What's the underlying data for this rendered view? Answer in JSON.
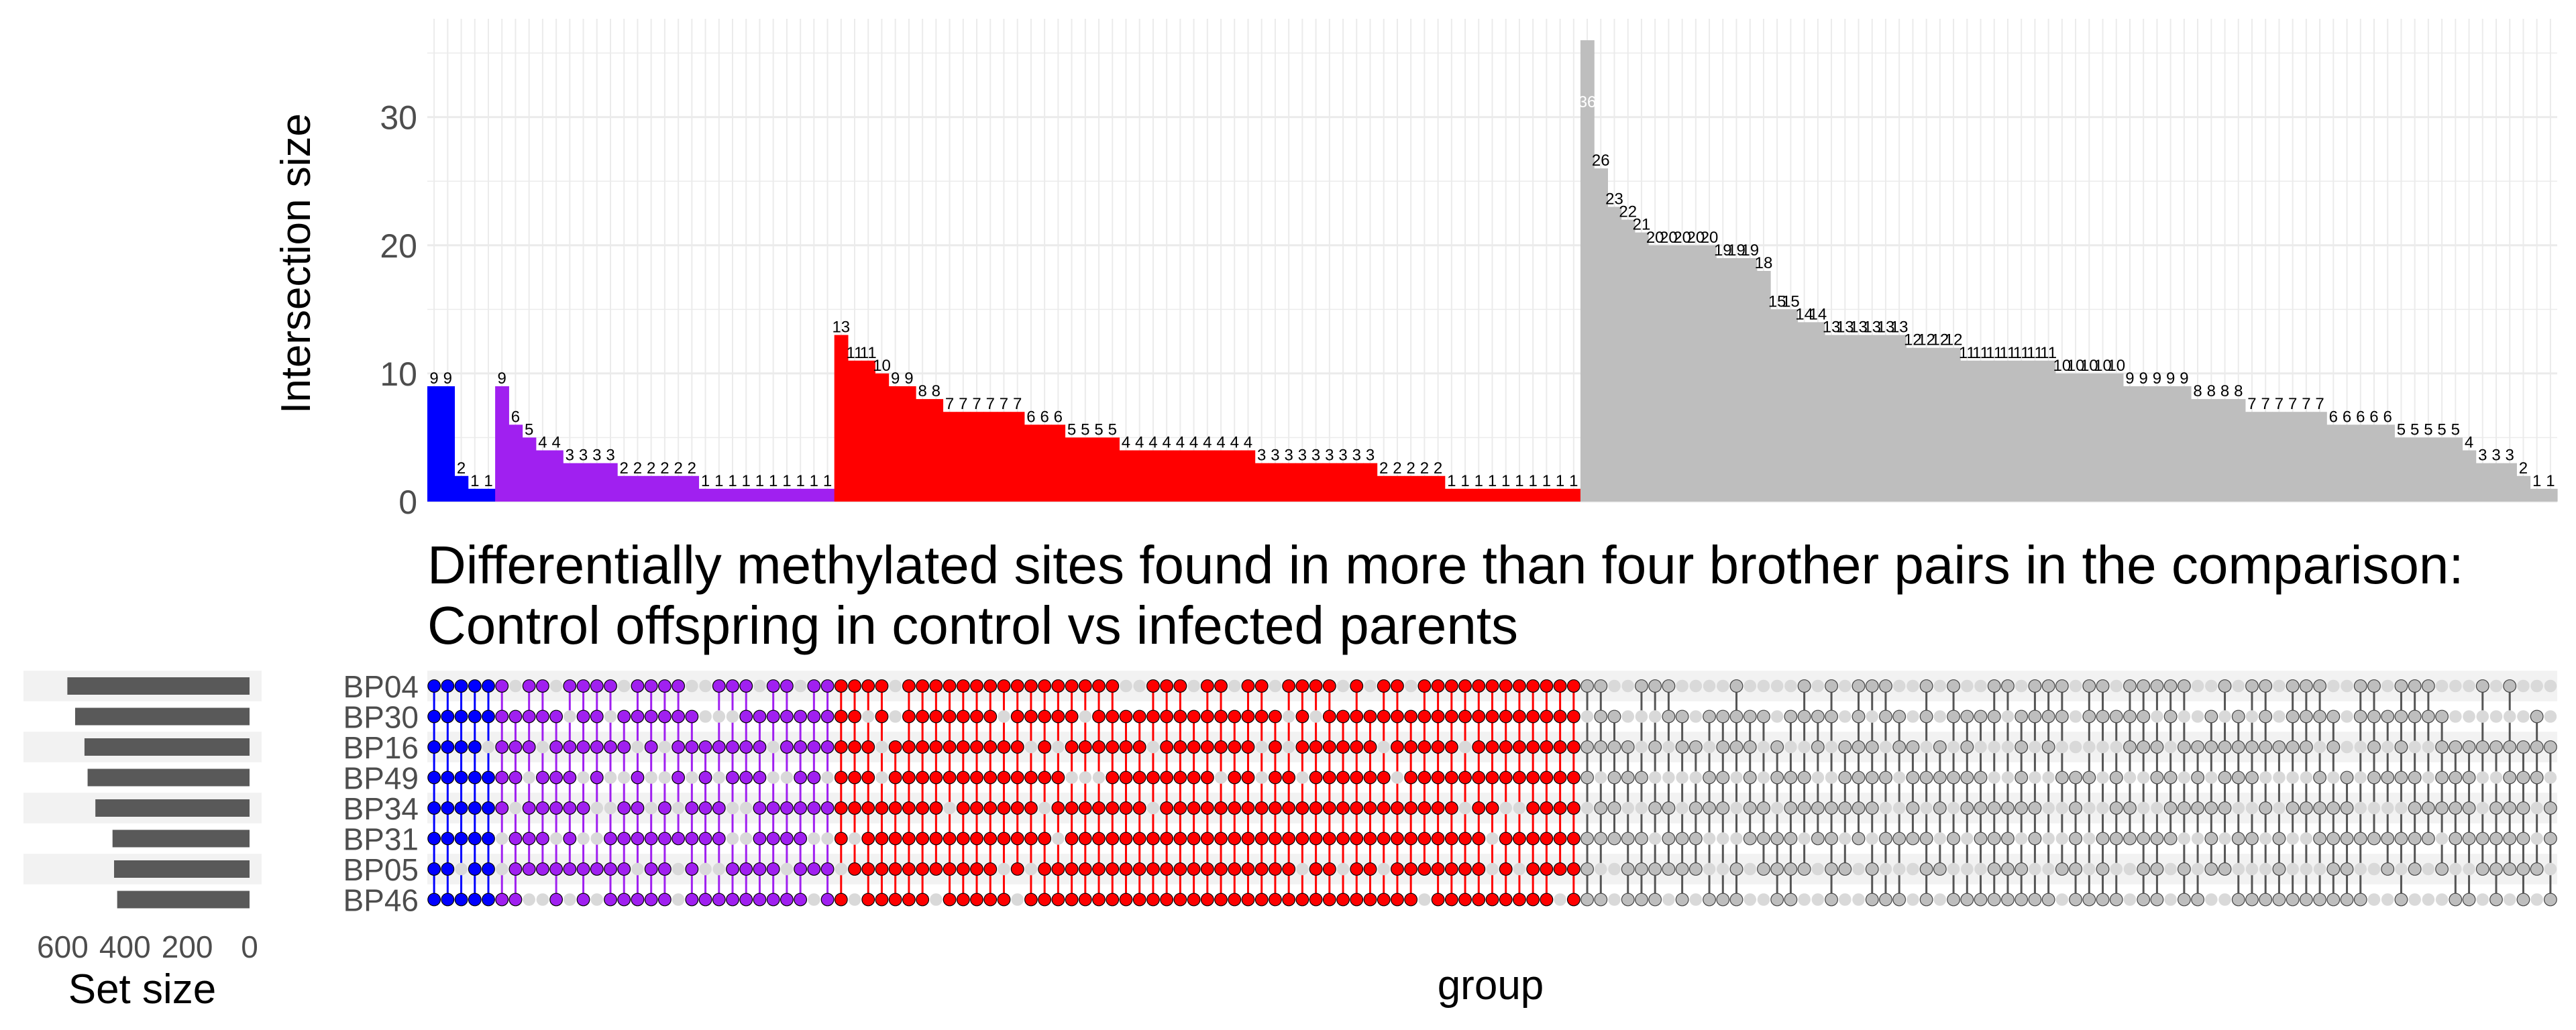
{
  "chart_data": {
    "type": "upset",
    "title_lines": [
      "Differentially methylated sites found in more than four brother pairs in the comparison:",
      "Control offspring in control vs infected parents"
    ],
    "ylabel": "Intersection size",
    "xlabel": "group",
    "set_size_label": "Set size",
    "y_ticks": [
      0,
      10,
      20,
      30
    ],
    "ylim": [
      0,
      36
    ],
    "set_size_ticks": [
      {
        "value": 600,
        "label": "600"
      },
      {
        "value": 400,
        "label": "400"
      },
      {
        "value": 200,
        "label": "200"
      },
      {
        "value": 0,
        "label": "0"
      }
    ],
    "set_size_max": 700,
    "sets": [
      {
        "name": "BP04",
        "size": 585
      },
      {
        "name": "BP30",
        "size": 560
      },
      {
        "name": "BP16",
        "size": 530
      },
      {
        "name": "BP49",
        "size": 520
      },
      {
        "name": "BP34",
        "size": 495
      },
      {
        "name": "BP31",
        "size": 440
      },
      {
        "name": "BP05",
        "size": 435
      },
      {
        "name": "BP46",
        "size": 425
      }
    ],
    "groups": [
      {
        "color": "#0000ff",
        "values": [
          9,
          9,
          2,
          1,
          1
        ]
      },
      {
        "color": "#a020f0",
        "values": [
          9,
          6,
          5,
          4,
          4,
          3,
          3,
          3,
          3,
          2,
          2,
          2,
          2,
          2,
          2,
          1,
          1,
          1,
          1,
          1,
          1,
          1,
          1,
          1,
          1
        ]
      },
      {
        "color": "#ff0000",
        "values": [
          13,
          11,
          11,
          10,
          9,
          9,
          8,
          8,
          7,
          7,
          7,
          7,
          7,
          7,
          6,
          6,
          6,
          5,
          5,
          5,
          5,
          4,
          4,
          4,
          4,
          4,
          4,
          4,
          4,
          4,
          4,
          3,
          3,
          3,
          3,
          3,
          3,
          3,
          3,
          3,
          2,
          2,
          2,
          2,
          2,
          1,
          1,
          1,
          1,
          1,
          1,
          1,
          1,
          1,
          1
        ]
      },
      {
        "color": "#bebebe",
        "values": [
          36,
          26,
          23,
          22,
          21,
          20,
          20,
          20,
          20,
          20,
          19,
          19,
          19,
          18,
          15,
          15,
          14,
          14,
          13,
          13,
          13,
          13,
          13,
          13,
          12,
          12,
          12,
          12,
          11,
          11,
          11,
          11,
          11,
          11,
          11,
          10,
          10,
          10,
          10,
          10,
          9,
          9,
          9,
          9,
          9,
          8,
          8,
          8,
          8,
          7,
          7,
          7,
          7,
          7,
          7,
          6,
          6,
          6,
          6,
          6,
          5,
          5,
          5,
          5,
          5,
          4,
          3,
          3,
          3,
          2,
          1,
          1
        ]
      }
    ]
  }
}
